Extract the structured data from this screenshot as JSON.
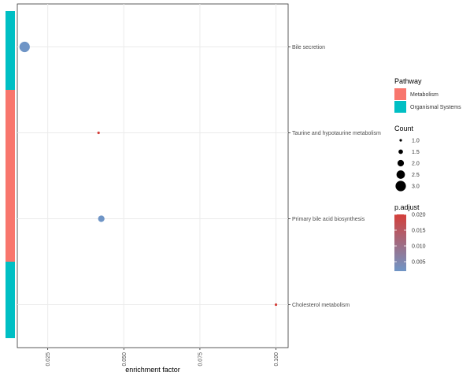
{
  "chart_data": {
    "type": "scatter",
    "xlabel": "enrichment factor",
    "ylabel": "",
    "xlim": [
      0.015,
      0.104
    ],
    "x_ticks": [
      "0.025",
      "0.050",
      "0.075",
      "0.100"
    ],
    "x_tick_values": [
      0.025,
      0.05,
      0.075,
      0.1
    ],
    "categories": [
      "Bile secretion",
      "Taurine and hypotaurine metabolism",
      "Primary bile acid biosynthesis",
      "Cholesterol metabolism"
    ],
    "points": [
      {
        "pathway": "Bile secretion",
        "enrichment_factor": 0.0174,
        "count": 3,
        "p_adjust": 0.002,
        "category": "Organismal Systems"
      },
      {
        "pathway": "Taurine and hypotaurine metabolism",
        "enrichment_factor": 0.0417,
        "count": 1,
        "p_adjust": 0.02,
        "category": "Metabolism"
      },
      {
        "pathway": "Primary bile acid biosynthesis",
        "enrichment_factor": 0.0426,
        "count": 2,
        "p_adjust": 0.002,
        "category": "Metabolism"
      },
      {
        "pathway": "Cholesterol metabolism",
        "enrichment_factor": 0.1,
        "count": 1,
        "p_adjust": 0.02,
        "category": "Organismal Systems"
      }
    ],
    "pathway_colors": {
      "Metabolism": "#f8766d",
      "Organismal Systems": "#00bfc4"
    },
    "grid": true,
    "legend_position": "right",
    "legend": {
      "pathway": {
        "title": "Pathway",
        "entries": [
          "Metabolism",
          "Organismal Systems"
        ]
      },
      "count": {
        "title": "Count",
        "entries": [
          "1.0",
          "1.5",
          "2.0",
          "2.5",
          "3.0"
        ],
        "values": [
          1.0,
          1.5,
          2.0,
          2.5,
          3.0
        ]
      },
      "p_adjust": {
        "title": "p.adjust",
        "labels": [
          "0.020",
          "0.015",
          "0.010",
          "0.005"
        ],
        "values": [
          0.02,
          0.015,
          0.01,
          0.005
        ],
        "low_color": "#6f95c6",
        "high_color": "#d43f3a",
        "range": [
          0.002,
          0.02
        ]
      }
    }
  }
}
